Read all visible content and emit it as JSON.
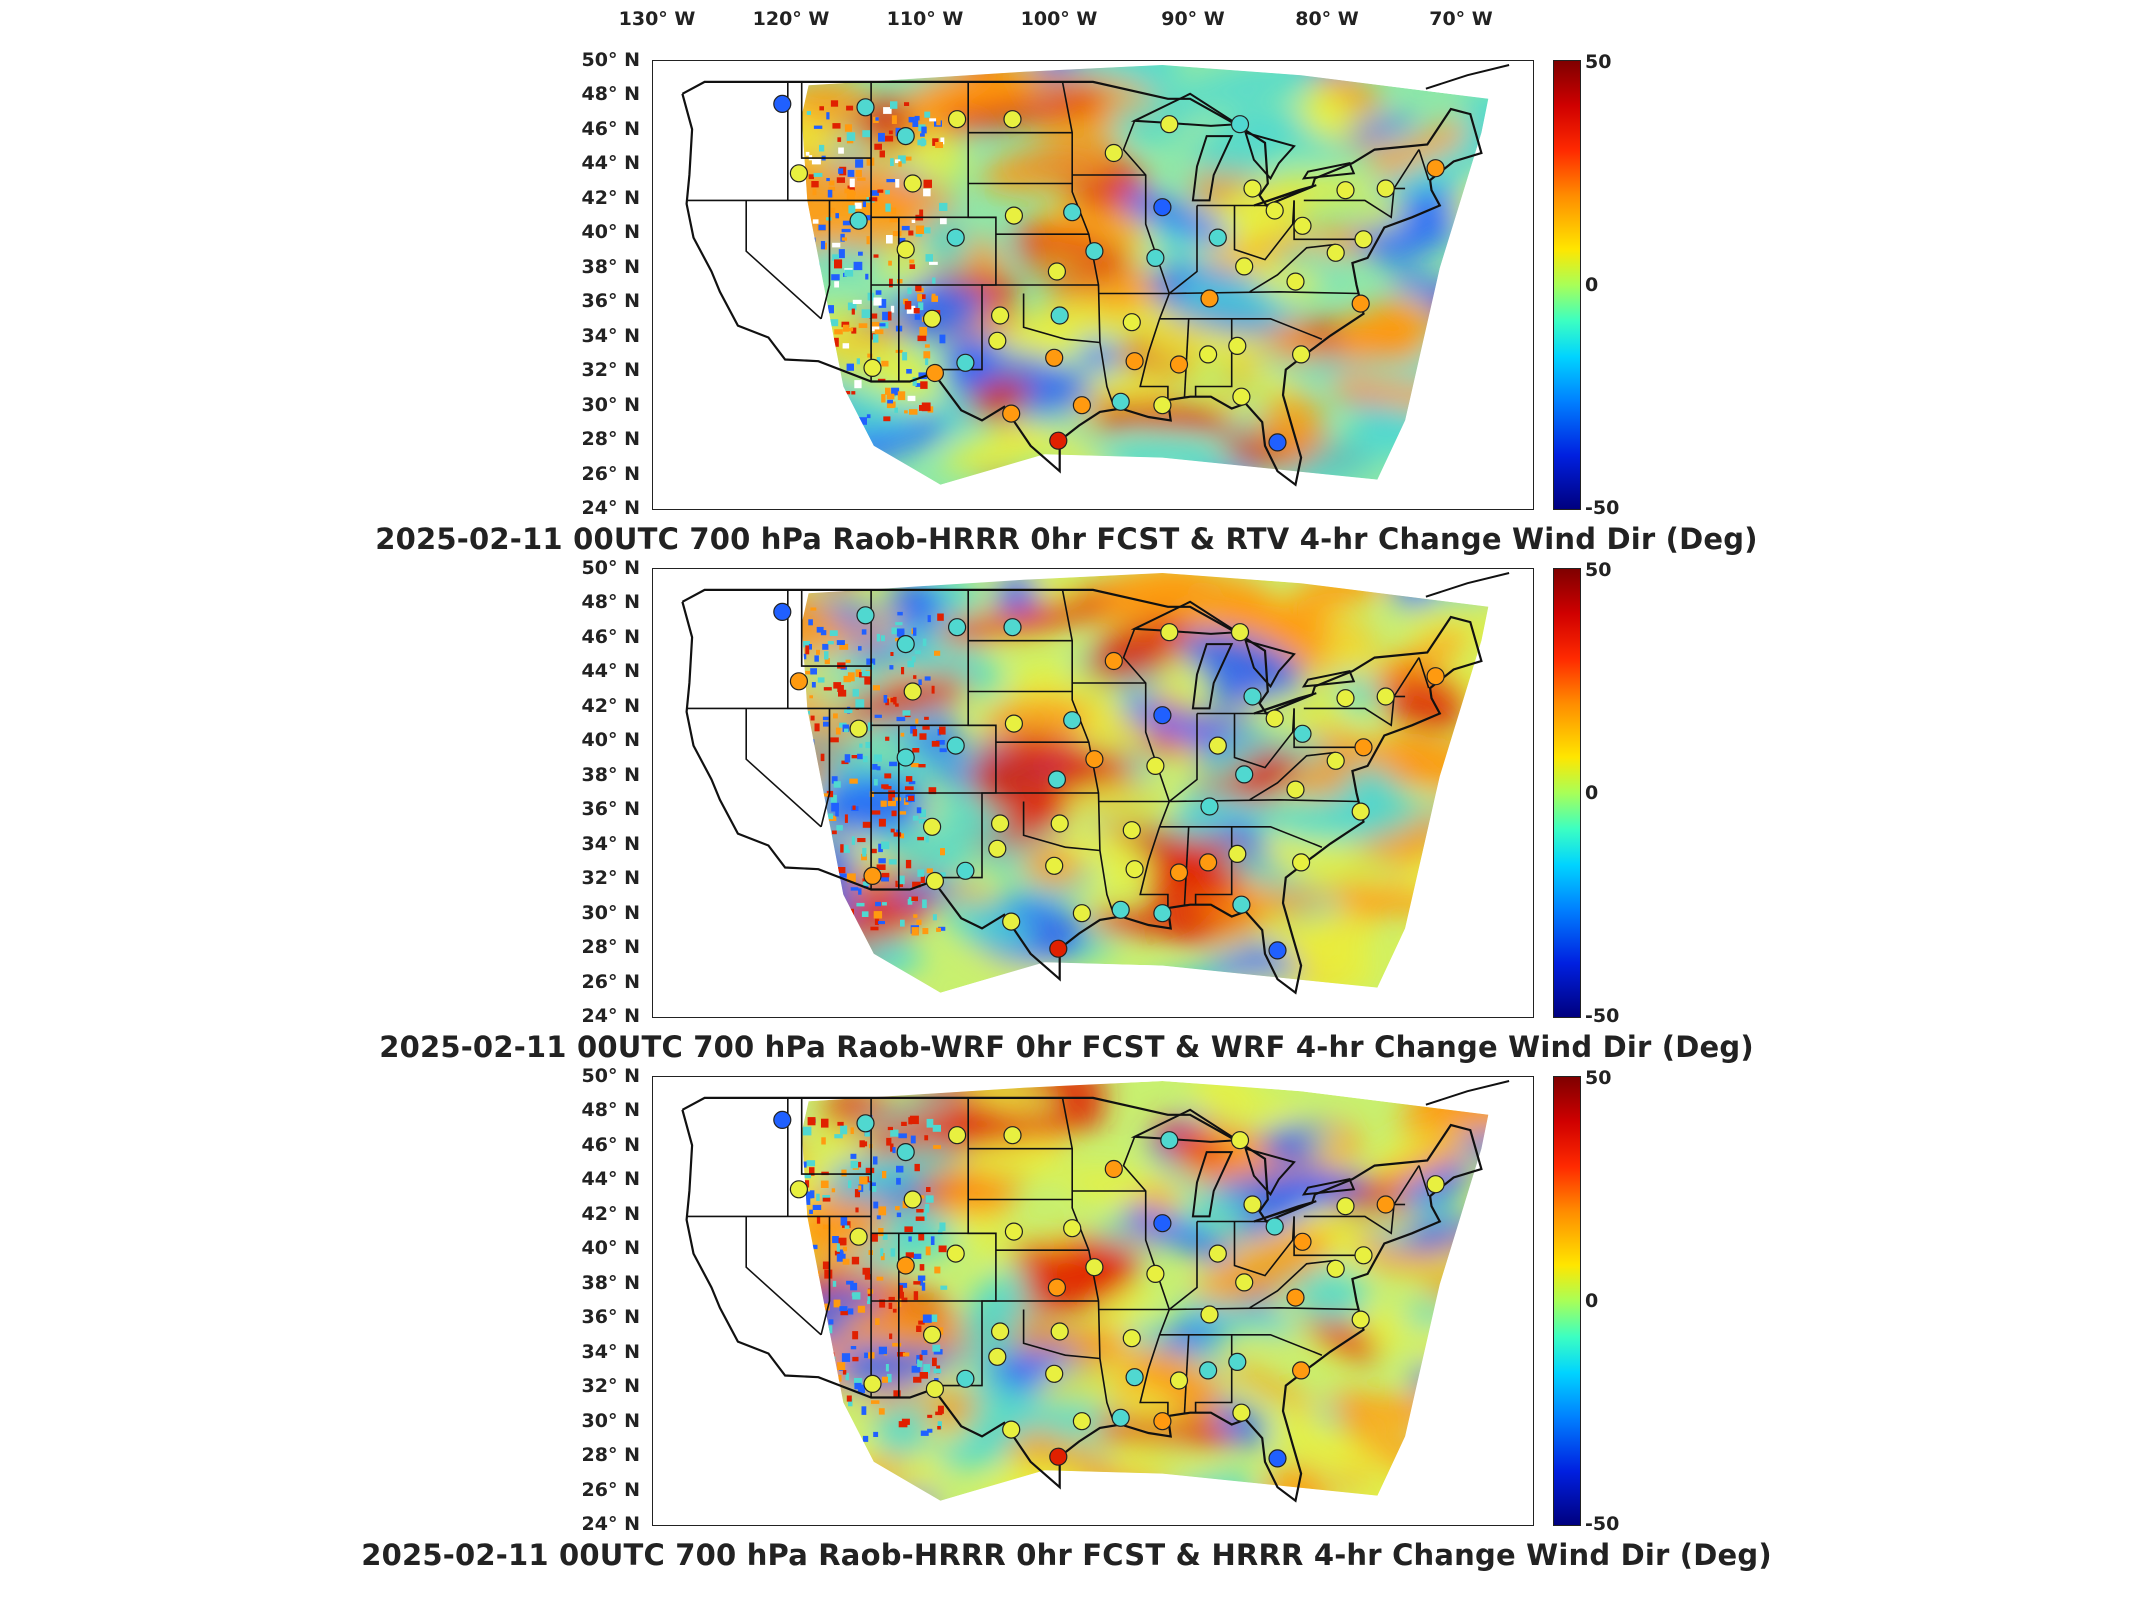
{
  "map": {
    "longitude_labels": [
      "130° W",
      "120° W",
      "110° W",
      "100° W",
      "90° W",
      "80° W",
      "70° W"
    ],
    "latitude_labels": [
      "50° N",
      "48° N",
      "46° N",
      "44° N",
      "42° N",
      "40° N",
      "38° N",
      "36° N",
      "34° N",
      "32° N",
      "30° N",
      "28° N",
      "26° N",
      "24° N"
    ],
    "colorbar": {
      "max_label": "50",
      "mid_label": "0",
      "min_label": "-50",
      "range": [
        -50,
        50
      ],
      "colormap": "jet"
    },
    "colors": {
      "hot": "#e02000",
      "warm": "#ff9a10",
      "neutral": "#e8f040",
      "cool": "#50d8d0",
      "cold": "#2060ff",
      "outline": "#111111"
    }
  },
  "panels": [
    {
      "id": "hrrr-rtv",
      "title": "2025-02-11 00UTC 700 hPa Raob-HRRR 0hr FCST & RTV 4-hr Change Wind Dir (Deg)"
    },
    {
      "id": "wrf",
      "title": "2025-02-11 00UTC 700 hPa Raob-WRF 0hr FCST & WRF 4-hr Change Wind Dir (Deg)"
    },
    {
      "id": "hrrr",
      "title": "2025-02-11 00UTC 700 hPa Raob-HRRR 0hr FCST & HRRR 4-hr Change Wind Dir (Deg)"
    }
  ]
}
